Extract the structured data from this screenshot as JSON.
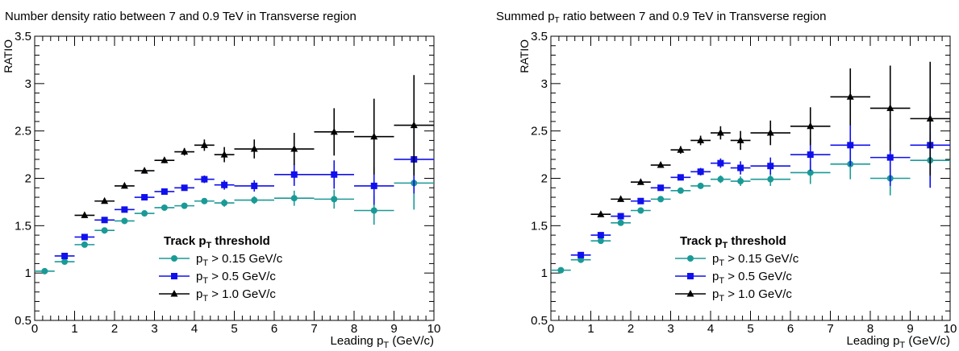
{
  "chart_data": [
    {
      "type": "scatter",
      "title_parts": [
        "Number density ratio between 7 and 0.9 TeV in Transverse region"
      ],
      "title_sub": "",
      "ylabel": "RATIO",
      "xlabel_parts": [
        "Leading  p",
        "T",
        " (GeV/c)"
      ],
      "xlim": [
        0,
        10
      ],
      "ylim": [
        0.5,
        3.5
      ],
      "xticks": [
        "0",
        "1",
        "2",
        "3",
        "4",
        "5",
        "6",
        "7",
        "8",
        "9",
        "10"
      ],
      "yticks": [
        "0.5",
        "1",
        "1.5",
        "2",
        "2.5",
        "3",
        "3.5"
      ],
      "legend": {
        "header_parts": [
          "Track p",
          "T",
          " threshold"
        ],
        "placement": "bottom-center"
      },
      "series": [
        {
          "label_parts": [
            "p",
            "T",
            " > 0.15 GeV/c"
          ],
          "color": "#1a9a96",
          "marker": "circle",
          "points": [
            {
              "x": 0.25,
              "xerr": 0.25,
              "y": 1.02,
              "yerr": 0.01
            },
            {
              "x": 0.75,
              "xerr": 0.25,
              "y": 1.12,
              "yerr": 0.01
            },
            {
              "x": 1.25,
              "xerr": 0.25,
              "y": 1.3,
              "yerr": 0.01
            },
            {
              "x": 1.75,
              "xerr": 0.25,
              "y": 1.45,
              "yerr": 0.01
            },
            {
              "x": 2.25,
              "xerr": 0.25,
              "y": 1.55,
              "yerr": 0.01
            },
            {
              "x": 2.75,
              "xerr": 0.25,
              "y": 1.63,
              "yerr": 0.01
            },
            {
              "x": 3.25,
              "xerr": 0.25,
              "y": 1.69,
              "yerr": 0.01
            },
            {
              "x": 3.75,
              "xerr": 0.25,
              "y": 1.71,
              "yerr": 0.01
            },
            {
              "x": 4.25,
              "xerr": 0.25,
              "y": 1.76,
              "yerr": 0.02
            },
            {
              "x": 4.75,
              "xerr": 0.25,
              "y": 1.74,
              "yerr": 0.04
            },
            {
              "x": 5.5,
              "xerr": 0.5,
              "y": 1.77,
              "yerr": 0.04
            },
            {
              "x": 6.5,
              "xerr": 0.5,
              "y": 1.79,
              "yerr": 0.08
            },
            {
              "x": 7.5,
              "xerr": 0.5,
              "y": 1.78,
              "yerr": 0.1
            },
            {
              "x": 8.5,
              "xerr": 0.5,
              "y": 1.66,
              "yerr": 0.15
            },
            {
              "x": 9.5,
              "xerr": 0.5,
              "y": 1.95,
              "yerr": 0.28
            }
          ]
        },
        {
          "label_parts": [
            "p",
            "T",
            " > 0.5 GeV/c"
          ],
          "color": "#1010ee",
          "marker": "square",
          "points": [
            {
              "x": 0.75,
              "xerr": 0.25,
              "y": 1.18,
              "yerr": 0.01
            },
            {
              "x": 1.25,
              "xerr": 0.25,
              "y": 1.38,
              "yerr": 0.01
            },
            {
              "x": 1.75,
              "xerr": 0.25,
              "y": 1.56,
              "yerr": 0.01
            },
            {
              "x": 2.25,
              "xerr": 0.25,
              "y": 1.67,
              "yerr": 0.01
            },
            {
              "x": 2.75,
              "xerr": 0.25,
              "y": 1.8,
              "yerr": 0.01
            },
            {
              "x": 3.25,
              "xerr": 0.25,
              "y": 1.86,
              "yerr": 0.02
            },
            {
              "x": 3.75,
              "xerr": 0.25,
              "y": 1.9,
              "yerr": 0.02
            },
            {
              "x": 4.25,
              "xerr": 0.25,
              "y": 1.99,
              "yerr": 0.04
            },
            {
              "x": 4.75,
              "xerr": 0.25,
              "y": 1.93,
              "yerr": 0.05
            },
            {
              "x": 5.5,
              "xerr": 0.5,
              "y": 1.92,
              "yerr": 0.06
            },
            {
              "x": 6.5,
              "xerr": 0.5,
              "y": 2.04,
              "yerr": 0.12
            },
            {
              "x": 7.5,
              "xerr": 0.5,
              "y": 2.04,
              "yerr": 0.15
            },
            {
              "x": 8.5,
              "xerr": 0.5,
              "y": 1.92,
              "yerr": 0.2
            },
            {
              "x": 9.5,
              "xerr": 0.5,
              "y": 2.2,
              "yerr": 0.36
            }
          ]
        },
        {
          "label_parts": [
            "p",
            "T",
            " > 1.0 GeV/c"
          ],
          "color": "#000000",
          "marker": "triangle",
          "points": [
            {
              "x": 1.25,
              "xerr": 0.25,
              "y": 1.61,
              "yerr": 0.01
            },
            {
              "x": 1.75,
              "xerr": 0.25,
              "y": 1.76,
              "yerr": 0.01
            },
            {
              "x": 2.25,
              "xerr": 0.25,
              "y": 1.92,
              "yerr": 0.02
            },
            {
              "x": 2.75,
              "xerr": 0.25,
              "y": 2.08,
              "yerr": 0.02
            },
            {
              "x": 3.25,
              "xerr": 0.25,
              "y": 2.19,
              "yerr": 0.03
            },
            {
              "x": 3.75,
              "xerr": 0.25,
              "y": 2.28,
              "yerr": 0.04
            },
            {
              "x": 4.25,
              "xerr": 0.25,
              "y": 2.35,
              "yerr": 0.06
            },
            {
              "x": 4.75,
              "xerr": 0.25,
              "y": 2.25,
              "yerr": 0.08
            },
            {
              "x": 5.5,
              "xerr": 0.5,
              "y": 2.31,
              "yerr": 0.1
            },
            {
              "x": 6.5,
              "xerr": 0.5,
              "y": 2.31,
              "yerr": 0.17
            },
            {
              "x": 7.5,
              "xerr": 0.5,
              "y": 2.49,
              "yerr": 0.25
            },
            {
              "x": 8.5,
              "xerr": 0.5,
              "y": 2.44,
              "yerr": 0.4
            },
            {
              "x": 9.5,
              "xerr": 0.5,
              "y": 2.56,
              "yerr": 0.53
            }
          ]
        }
      ]
    },
    {
      "type": "scatter",
      "title_parts": [
        "Summed p",
        "T",
        " ratio between 7 and 0.9 TeV in Transverse region"
      ],
      "ylabel": "RATIO",
      "xlabel_parts": [
        "Leading  p",
        "T",
        " (GeV/c)"
      ],
      "xlim": [
        0,
        10
      ],
      "ylim": [
        0.5,
        3.5
      ],
      "xticks": [
        "0",
        "1",
        "2",
        "3",
        "4",
        "5",
        "6",
        "7",
        "8",
        "9",
        "10"
      ],
      "yticks": [
        "0.5",
        "1",
        "1.5",
        "2",
        "2.5",
        "3",
        "3.5"
      ],
      "legend": {
        "header_parts": [
          "Track p",
          "T",
          " threshold"
        ],
        "placement": "bottom-center"
      },
      "series": [
        {
          "label_parts": [
            "p",
            "T",
            " > 0.15 GeV/c"
          ],
          "color": "#1a9a96",
          "marker": "circle",
          "points": [
            {
              "x": 0.25,
              "xerr": 0.25,
              "y": 1.03,
              "yerr": 0.01
            },
            {
              "x": 0.75,
              "xerr": 0.25,
              "y": 1.14,
              "yerr": 0.01
            },
            {
              "x": 1.25,
              "xerr": 0.25,
              "y": 1.34,
              "yerr": 0.01
            },
            {
              "x": 1.75,
              "xerr": 0.25,
              "y": 1.53,
              "yerr": 0.01
            },
            {
              "x": 2.25,
              "xerr": 0.25,
              "y": 1.66,
              "yerr": 0.01
            },
            {
              "x": 2.75,
              "xerr": 0.25,
              "y": 1.78,
              "yerr": 0.02
            },
            {
              "x": 3.25,
              "xerr": 0.25,
              "y": 1.87,
              "yerr": 0.02
            },
            {
              "x": 3.75,
              "xerr": 0.25,
              "y": 1.92,
              "yerr": 0.03
            },
            {
              "x": 4.25,
              "xerr": 0.25,
              "y": 1.99,
              "yerr": 0.04
            },
            {
              "x": 4.75,
              "xerr": 0.25,
              "y": 1.97,
              "yerr": 0.05
            },
            {
              "x": 5.5,
              "xerr": 0.5,
              "y": 1.99,
              "yerr": 0.07
            },
            {
              "x": 6.5,
              "xerr": 0.5,
              "y": 2.06,
              "yerr": 0.12
            },
            {
              "x": 7.5,
              "xerr": 0.5,
              "y": 2.15,
              "yerr": 0.16
            },
            {
              "x": 8.5,
              "xerr": 0.5,
              "y": 2.0,
              "yerr": 0.18
            },
            {
              "x": 9.5,
              "xerr": 0.5,
              "y": 2.19,
              "yerr": 0.28
            }
          ]
        },
        {
          "label_parts": [
            "p",
            "T",
            " > 0.5 GeV/c"
          ],
          "color": "#1010ee",
          "marker": "square",
          "points": [
            {
              "x": 0.75,
              "xerr": 0.25,
              "y": 1.19,
              "yerr": 0.01
            },
            {
              "x": 1.25,
              "xerr": 0.25,
              "y": 1.4,
              "yerr": 0.01
            },
            {
              "x": 1.75,
              "xerr": 0.25,
              "y": 1.6,
              "yerr": 0.01
            },
            {
              "x": 2.25,
              "xerr": 0.25,
              "y": 1.76,
              "yerr": 0.02
            },
            {
              "x": 2.75,
              "xerr": 0.25,
              "y": 1.9,
              "yerr": 0.02
            },
            {
              "x": 3.25,
              "xerr": 0.25,
              "y": 2.01,
              "yerr": 0.03
            },
            {
              "x": 3.75,
              "xerr": 0.25,
              "y": 2.07,
              "yerr": 0.04
            },
            {
              "x": 4.25,
              "xerr": 0.25,
              "y": 2.16,
              "yerr": 0.05
            },
            {
              "x": 4.75,
              "xerr": 0.25,
              "y": 2.11,
              "yerr": 0.07
            },
            {
              "x": 5.5,
              "xerr": 0.5,
              "y": 2.13,
              "yerr": 0.09
            },
            {
              "x": 6.5,
              "xerr": 0.5,
              "y": 2.25,
              "yerr": 0.17
            },
            {
              "x": 7.5,
              "xerr": 0.5,
              "y": 2.35,
              "yerr": 0.22
            },
            {
              "x": 8.5,
              "xerr": 0.5,
              "y": 2.22,
              "yerr": 0.3
            },
            {
              "x": 9.5,
              "xerr": 0.5,
              "y": 2.35,
              "yerr": 0.45
            }
          ]
        },
        {
          "label_parts": [
            "p",
            "T",
            " > 1.0 GeV/c"
          ],
          "color": "#000000",
          "marker": "triangle",
          "points": [
            {
              "x": 1.25,
              "xerr": 0.25,
              "y": 1.62,
              "yerr": 0.01
            },
            {
              "x": 1.75,
              "xerr": 0.25,
              "y": 1.78,
              "yerr": 0.02
            },
            {
              "x": 2.25,
              "xerr": 0.25,
              "y": 1.96,
              "yerr": 0.02
            },
            {
              "x": 2.75,
              "xerr": 0.25,
              "y": 2.14,
              "yerr": 0.03
            },
            {
              "x": 3.25,
              "xerr": 0.25,
              "y": 2.3,
              "yerr": 0.04
            },
            {
              "x": 3.75,
              "xerr": 0.25,
              "y": 2.4,
              "yerr": 0.05
            },
            {
              "x": 4.25,
              "xerr": 0.25,
              "y": 2.48,
              "yerr": 0.07
            },
            {
              "x": 4.75,
              "xerr": 0.25,
              "y": 2.4,
              "yerr": 0.1
            },
            {
              "x": 5.5,
              "xerr": 0.5,
              "y": 2.48,
              "yerr": 0.13
            },
            {
              "x": 6.5,
              "xerr": 0.5,
              "y": 2.55,
              "yerr": 0.2
            },
            {
              "x": 7.5,
              "xerr": 0.5,
              "y": 2.86,
              "yerr": 0.3
            },
            {
              "x": 8.5,
              "xerr": 0.5,
              "y": 2.74,
              "yerr": 0.45
            },
            {
              "x": 9.5,
              "xerr": 0.5,
              "y": 2.63,
              "yerr": 0.6
            }
          ]
        }
      ]
    }
  ]
}
